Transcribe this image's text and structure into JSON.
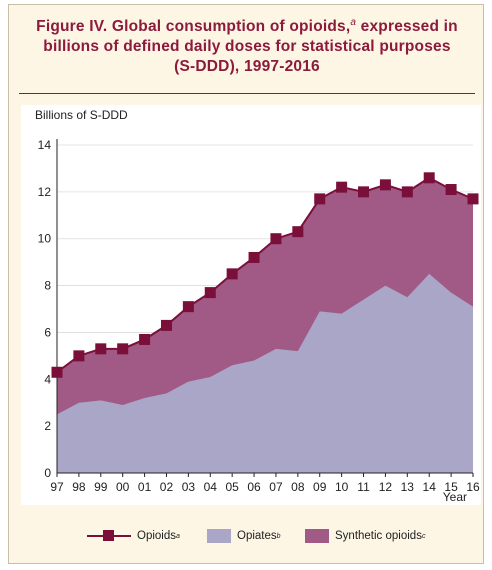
{
  "title": {
    "line1_prefix": "Figure IV.   Global consumption of opioids,",
    "line1_sup": "a",
    "line1_suffix": " expressed in",
    "line2": "billions of defined daily doses for statistical purposes",
    "line3": "(S-DDD), 1997-2016"
  },
  "colors": {
    "accent": "#8b1a3c",
    "opioids_line": "#7a0f3a",
    "opiates_fill": "#a9a6c8",
    "synthetic_fill": "#a05a85"
  },
  "legend": {
    "opioids": {
      "label": "Opioids",
      "sup": "a"
    },
    "opiates": {
      "label": "Opiates",
      "sup": "b"
    },
    "synthetic": {
      "label": "Synthetic opioids",
      "sup": "c"
    }
  },
  "chart_data": {
    "type": "area",
    "ylabel": "Billions of S-DDD",
    "xlabel": "Year",
    "ylim": [
      0,
      14
    ],
    "yticks": [
      0,
      2,
      4,
      6,
      8,
      10,
      12,
      14
    ],
    "categories": [
      "97",
      "98",
      "99",
      "00",
      "01",
      "02",
      "03",
      "04",
      "05",
      "06",
      "07",
      "08",
      "09",
      "10",
      "11",
      "12",
      "13",
      "14",
      "15",
      "16"
    ],
    "grid": true,
    "legend_position": "bottom",
    "series": [
      {
        "name": "Opioids",
        "kind": "line-markers",
        "values": [
          4.3,
          5.0,
          5.3,
          5.3,
          5.7,
          6.3,
          7.1,
          7.7,
          8.5,
          9.2,
          10.0,
          10.3,
          11.7,
          12.2,
          12.0,
          12.3,
          12.0,
          12.6,
          12.1,
          11.7
        ]
      },
      {
        "name": "Opiates",
        "kind": "area",
        "values": [
          2.5,
          3.0,
          3.1,
          2.9,
          3.2,
          3.4,
          3.9,
          4.1,
          4.6,
          4.8,
          5.3,
          5.2,
          6.9,
          6.8,
          7.4,
          8.0,
          7.5,
          8.5,
          7.7,
          7.1
        ]
      },
      {
        "name": "Synthetic opioids",
        "kind": "area-between",
        "values": [
          1.8,
          2.0,
          2.2,
          2.4,
          2.5,
          2.9,
          3.2,
          3.6,
          3.9,
          4.4,
          4.7,
          5.1,
          4.8,
          5.4,
          4.6,
          4.3,
          4.5,
          4.1,
          4.4,
          4.6
        ]
      }
    ]
  }
}
